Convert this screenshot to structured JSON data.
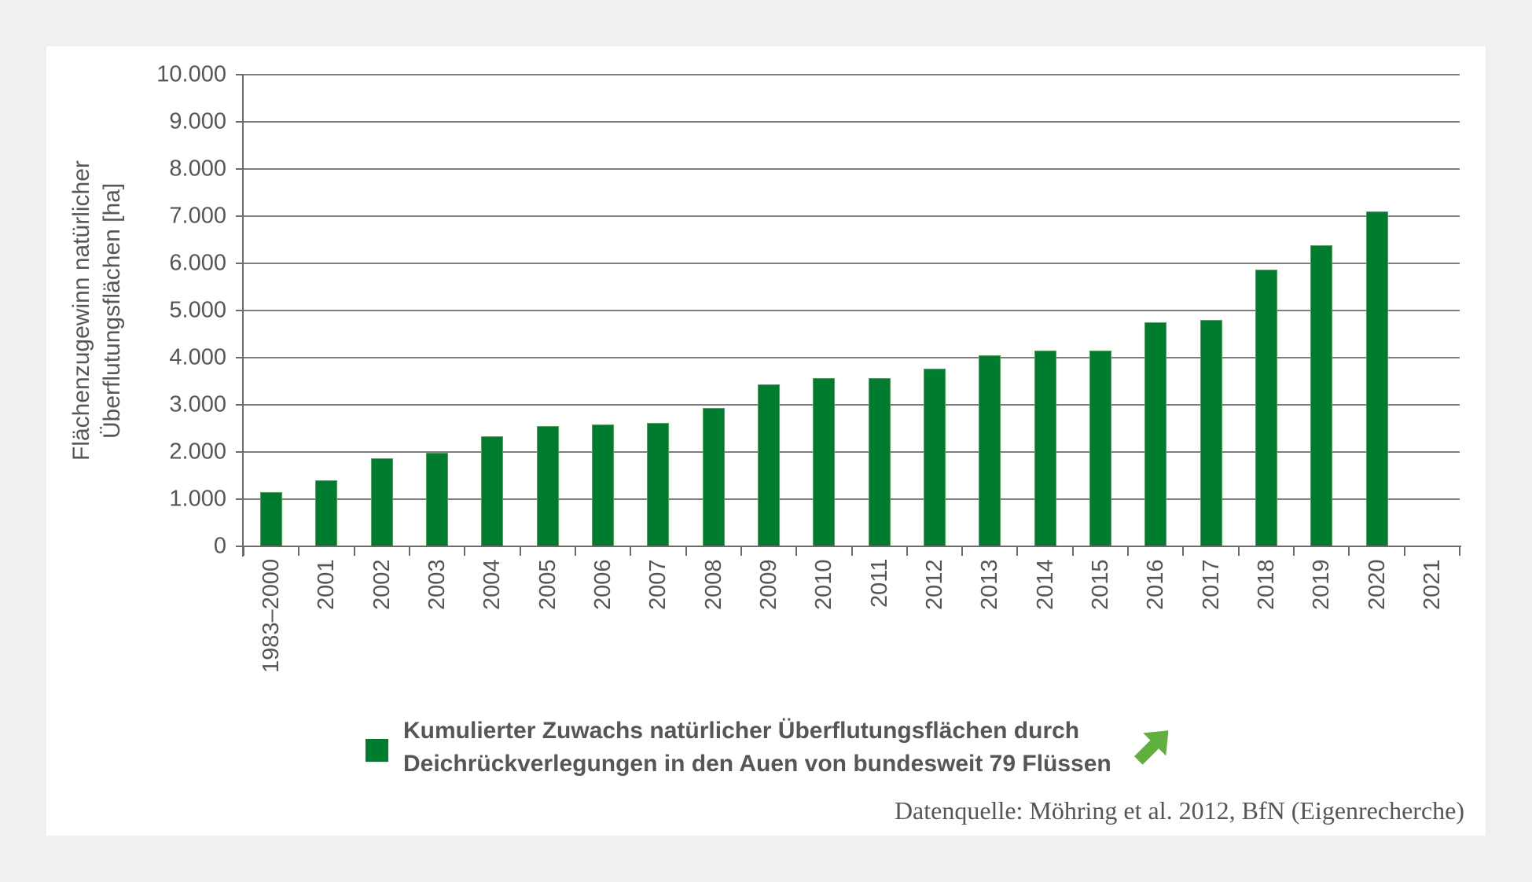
{
  "page": {
    "background_color": "#f0f0ef",
    "card_color": "#ffffff"
  },
  "chart_data": {
    "type": "bar",
    "title": "",
    "xlabel": "",
    "ylabel_lines": [
      "Flächenzugewinn natürlicher",
      "Überflutungsflächen [ha]"
    ],
    "categories": [
      "1983–2000",
      "2001",
      "2002",
      "2003",
      "2004",
      "2005",
      "2006",
      "2007",
      "2008",
      "2009",
      "2010",
      "2011",
      "2012",
      "2013",
      "2014",
      "2015",
      "2016",
      "2017",
      "2018",
      "2019",
      "2020",
      "2021"
    ],
    "values": [
      1150,
      1400,
      1870,
      1980,
      2340,
      2550,
      2590,
      2620,
      2930,
      3440,
      3560,
      3560,
      3760,
      4050,
      4150,
      4150,
      4750,
      4800,
      5870,
      6380,
      7100,
      null
    ],
    "unit": "ha",
    "ylim": [
      0,
      10000
    ],
    "ytick_values": [
      0,
      1000,
      2000,
      3000,
      4000,
      5000,
      6000,
      7000,
      8000,
      9000,
      10000
    ],
    "ytick_labels": [
      "0",
      "1.000",
      "2.000",
      "3.000",
      "4.000",
      "5.000",
      "6.000",
      "7.000",
      "8.000",
      "9.000",
      "10.000"
    ],
    "grid": "horizontal-only",
    "bar_color": "#007c2f",
    "bar_border_color": "#54a158",
    "gridline_color": "#7f7f7f",
    "axis_color": "#6b6b6a",
    "text_color": "#565655",
    "legend_position": "bottom"
  },
  "legend": {
    "lines": [
      "Kumulierter Zuwachs natürlicher Überflutungsflächen durch",
      "Deichrückverlegungen in den Auen von bundesweit 79 Flüssen"
    ],
    "swatch_color": "#007c2f",
    "trend_arrow": {
      "direction": "up-right",
      "color": "#5fb03c"
    }
  },
  "source": {
    "text": "Datenquelle: Möhring et al. 2012, BfN (Eigenrecherche)"
  }
}
